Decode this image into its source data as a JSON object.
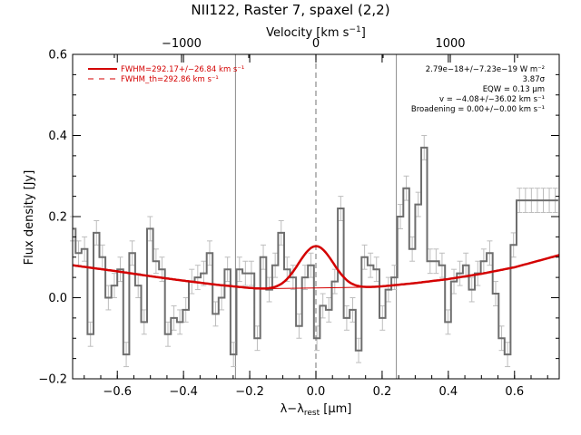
{
  "chart_data": {
    "type": "line",
    "title": "NII122, Raster 7, spaxel (2,2)",
    "xlabel": "λ−λrest [μm]",
    "xlabel_parts": {
      "main": "λ−λ",
      "sub": "rest",
      "unit": " [μm]"
    },
    "ylabel": "Flux density [Jy]",
    "top_xlabel": "Velocity [km s⁻¹]",
    "top_xlabel_parts": {
      "main": "Velocity [km s",
      "sup": "−1",
      "close": "]"
    },
    "xlim": [
      -0.735,
      0.735
    ],
    "ylim": [
      -0.2,
      0.6
    ],
    "x_ticks": [
      -0.6,
      -0.4,
      -0.2,
      0.0,
      0.2,
      0.4,
      0.6
    ],
    "x_tick_labels": [
      "−0.6",
      "−0.4",
      "−0.2",
      "0.0",
      "0.2",
      "0.4",
      "0.6"
    ],
    "y_ticks": [
      -0.2,
      0.0,
      0.2,
      0.4,
      0.6
    ],
    "y_tick_labels": [
      "−0.2",
      "0.0",
      "0.2",
      "0.4",
      "0.6"
    ],
    "top_ticks_um": [
      -0.406,
      0.0,
      0.406
    ],
    "top_tick_labels": [
      "−1000",
      "0",
      "1000"
    ],
    "vlines_x": [
      -0.243,
      0.243
    ],
    "center_dashed_x": 0.0,
    "spectrum": {
      "x": [
        -0.735,
        -0.717,
        -0.699,
        -0.681,
        -0.663,
        -0.645,
        -0.627,
        -0.609,
        -0.591,
        -0.573,
        -0.555,
        -0.537,
        -0.519,
        -0.501,
        -0.483,
        -0.465,
        -0.447,
        -0.429,
        -0.411,
        -0.393,
        -0.375,
        -0.357,
        -0.339,
        -0.321,
        -0.303,
        -0.285,
        -0.267,
        -0.249,
        -0.231,
        -0.213,
        -0.195,
        -0.177,
        -0.159,
        -0.141,
        -0.123,
        -0.105,
        -0.087,
        -0.069,
        -0.051,
        -0.033,
        -0.015,
        0.003,
        0.021,
        0.039,
        0.057,
        0.075,
        0.093,
        0.111,
        0.129,
        0.147,
        0.165,
        0.183,
        0.201,
        0.219,
        0.237,
        0.255,
        0.273,
        0.291,
        0.309,
        0.327,
        0.345,
        0.363,
        0.381,
        0.399,
        0.417,
        0.435,
        0.453,
        0.471,
        0.489,
        0.507,
        0.525,
        0.543,
        0.561,
        0.579,
        0.597,
        0.615,
        0.633,
        0.651,
        0.669,
        0.687,
        0.705,
        0.723
      ],
      "y": [
        0.17,
        0.11,
        0.12,
        -0.09,
        0.16,
        0.1,
        0.0,
        0.03,
        0.07,
        -0.14,
        0.11,
        0.03,
        -0.06,
        0.17,
        0.09,
        0.07,
        -0.09,
        -0.05,
        -0.06,
        -0.03,
        0.04,
        0.05,
        0.06,
        0.11,
        -0.04,
        0.0,
        0.07,
        -0.14,
        0.07,
        0.06,
        0.06,
        -0.1,
        0.1,
        0.02,
        0.08,
        0.16,
        0.07,
        0.05,
        -0.07,
        0.05,
        0.08,
        -0.1,
        -0.02,
        -0.03,
        0.04,
        0.22,
        -0.05,
        -0.03,
        -0.13,
        0.1,
        0.08,
        0.07,
        -0.05,
        0.02,
        0.05,
        0.2,
        0.27,
        0.12,
        0.23,
        0.37,
        0.09,
        0.09,
        0.08,
        -0.06,
        0.04,
        0.06,
        0.08,
        0.02,
        0.06,
        0.09,
        0.11,
        0.01,
        -0.1,
        -0.14,
        0.13,
        0.24,
        0.24,
        0.24,
        0.24,
        0.24,
        0.24,
        0.24
      ],
      "err": 0.03
    },
    "continuum": {
      "x": [
        -0.735,
        -0.6,
        -0.5,
        -0.4,
        -0.3,
        -0.2,
        -0.15,
        -0.1,
        -0.05,
        0.0,
        0.05,
        0.1,
        0.15,
        0.2,
        0.3,
        0.4,
        0.5,
        0.6,
        0.735
      ],
      "y": [
        0.08,
        0.065,
        0.053,
        0.042,
        0.032,
        0.024,
        0.021,
        0.02,
        0.02,
        0.02,
        0.021,
        0.022,
        0.025,
        0.028,
        0.036,
        0.046,
        0.059,
        0.075,
        0.105
      ]
    },
    "gaussian": {
      "center": 0.0,
      "amplitude": 0.107,
      "sigma": 0.052
    },
    "legend": [
      {
        "label": "FWHM=292.17+/−26.84 km s⁻¹",
        "style": "solid",
        "color": "#d40000"
      },
      {
        "label": "FWHM_th=292.86 km s⁻¹",
        "style": "dashed",
        "color": "#d40000"
      }
    ],
    "annotations": [
      "2.79e−18+/−7.23e−19 W m⁻²",
      "3.87σ",
      "EQW = 0.13 μm",
      "v = −4.08+/−36.02 km s⁻¹",
      "Broadening = 0.00+/−0.00 km s⁻¹"
    ],
    "colors": {
      "spectrum": "#6e6e6e",
      "errorbar": "#bdbdbd",
      "fit": "#d40000",
      "vline": "#8a8a8a",
      "axis": "#000000"
    }
  }
}
